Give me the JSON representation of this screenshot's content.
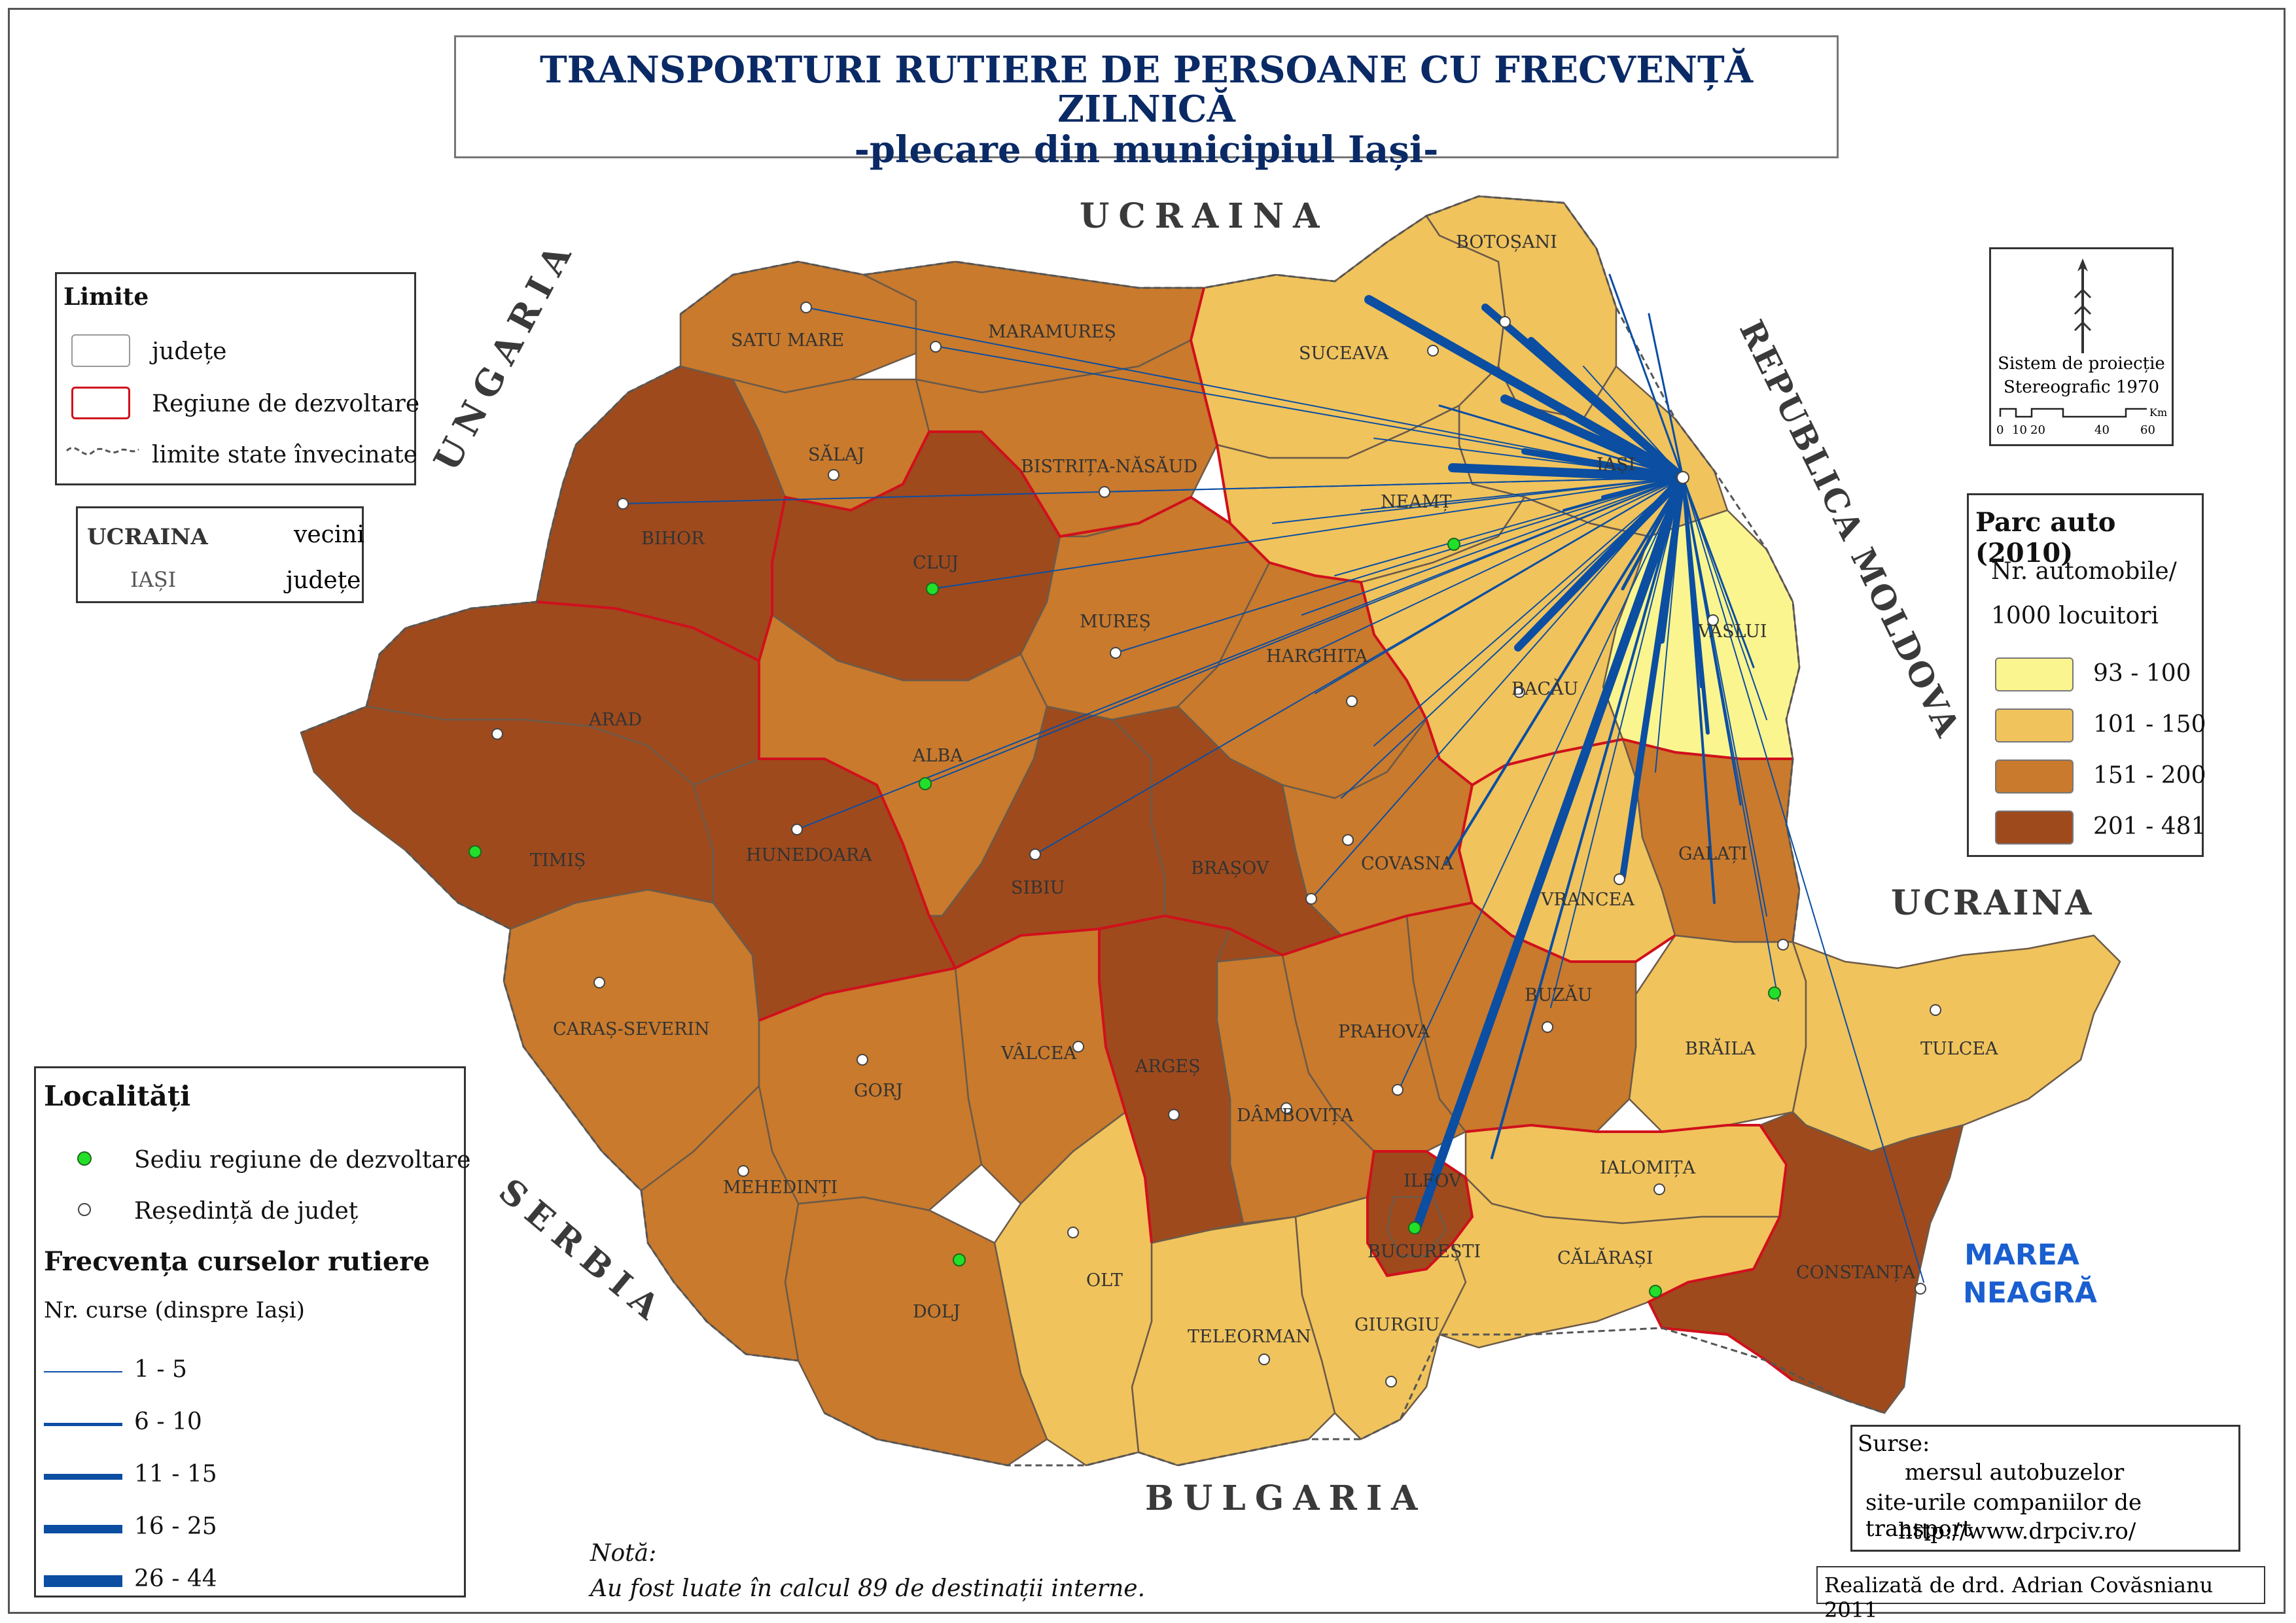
{
  "title": {
    "line1": "TRANSPORTURI RUTIERE DE PERSOANE CU FRECVENȚĂ ZILNICĂ",
    "line2": "-plecare din municipiul Iași-"
  },
  "neighbors": {
    "ucraina_north": "UCRAINA",
    "ucraina_east": "UCRAINA",
    "ungaria": "UNGARIA",
    "serbia": "SERBIA",
    "bulgaria": "BULGARIA",
    "republica_moldova": "REPUBLICA MOLDOVA"
  },
  "sea": {
    "line1": "MAREA",
    "line2": "NEAGRĂ"
  },
  "counties": [
    {
      "name": "BOTOȘANI",
      "class": "101 - 150"
    },
    {
      "name": "SUCEAVA",
      "class": "101 - 150"
    },
    {
      "name": "IAȘI",
      "class": "101 - 150"
    },
    {
      "name": "NEAMȚ",
      "class": "101 - 150"
    },
    {
      "name": "VASLUI",
      "class": "93 - 100"
    },
    {
      "name": "BACĂU",
      "class": "101 - 150"
    },
    {
      "name": "VRANCEA",
      "class": "101 - 150"
    },
    {
      "name": "GALAȚI",
      "class": "151 - 200"
    },
    {
      "name": "BRĂILA",
      "class": "101 - 150"
    },
    {
      "name": "TULCEA",
      "class": "101 - 150"
    },
    {
      "name": "CONSTANȚA",
      "class": "201 - 481"
    },
    {
      "name": "BUZĂU",
      "class": "151 - 200"
    },
    {
      "name": "PRAHOVA",
      "class": "151 - 200"
    },
    {
      "name": "IALOMIȚA",
      "class": "101 - 150"
    },
    {
      "name": "CĂLĂRAȘI",
      "class": "101 - 150"
    },
    {
      "name": "GIURGIU",
      "class": "101 - 150"
    },
    {
      "name": "TELEORMAN",
      "class": "101 - 150"
    },
    {
      "name": "ILFOV",
      "class": "201 - 481"
    },
    {
      "name": "BUCUREȘTI",
      "class": "201 - 481"
    },
    {
      "name": "DÂMBOVIȚA",
      "class": "151 - 200"
    },
    {
      "name": "ARGEȘ",
      "class": "201 - 481"
    },
    {
      "name": "OLT",
      "class": "101 - 150"
    },
    {
      "name": "VÂLCEA",
      "class": "151 - 200"
    },
    {
      "name": "DOLJ",
      "class": "151 - 200"
    },
    {
      "name": "GORJ",
      "class": "151 - 200"
    },
    {
      "name": "MEHEDINȚI",
      "class": "151 - 200"
    },
    {
      "name": "CARAȘ-SEVERIN",
      "class": "151 - 200"
    },
    {
      "name": "TIMIȘ",
      "class": "201 - 481"
    },
    {
      "name": "HUNEDOARA",
      "class": "201 - 481"
    },
    {
      "name": "ARAD",
      "class": "201 - 481"
    },
    {
      "name": "BIHOR",
      "class": "201 - 481"
    },
    {
      "name": "SATU MARE",
      "class": "151 - 200"
    },
    {
      "name": "MARAMUREȘ",
      "class": "151 - 200"
    },
    {
      "name": "SĂLAJ",
      "class": "151 - 200"
    },
    {
      "name": "CLUJ",
      "class": "201 - 481"
    },
    {
      "name": "BISTRIȚA-NĂSĂUD",
      "class": "151 - 200"
    },
    {
      "name": "MUREȘ",
      "class": "151 - 200"
    },
    {
      "name": "HARGHITA",
      "class": "151 - 200"
    },
    {
      "name": "COVASNA",
      "class": "151 - 200"
    },
    {
      "name": "ALBA",
      "class": "151 - 200"
    },
    {
      "name": "SIBIU",
      "class": "201 - 481"
    },
    {
      "name": "BRAȘOV",
      "class": "201 - 481"
    }
  ],
  "legend_limits": {
    "title": "Limite",
    "judete": "județe",
    "regiune": "Regiune de dezvoltare",
    "state": "limite state învecinate"
  },
  "legend_names": {
    "neighbor_sample": "UCRAINA",
    "neighbor_label": "vecini",
    "county_sample": "IAȘI",
    "county_label": "județe"
  },
  "legend_localitati": {
    "title": "Localități",
    "sediu": "Sediu regiune de dezvoltare",
    "resedinta": "Reședință de județ",
    "freq_title": "Frecvența curselor rutiere",
    "freq_sub": "Nr. curse (dinspre Iași)",
    "classes": [
      "1 - 5",
      "6 - 10",
      "11 - 15",
      "16 - 25",
      "26 - 44"
    ]
  },
  "legend_parc": {
    "title": "Parc auto (2010)",
    "sub1": "Nr. automobile/",
    "sub2": "1000 locuitori",
    "classes": [
      {
        "label": "93 - 100",
        "color": "#fbf58f"
      },
      {
        "label": "101 - 150",
        "color": "#f0c35c"
      },
      {
        "label": "151 - 200",
        "color": "#c97a2c"
      },
      {
        "label": "201 - 481",
        "color": "#9e4a1d"
      }
    ]
  },
  "projection": {
    "line1": "Sistem de proiecție",
    "line2": "Stereografic 1970",
    "scale_ticks": [
      "0",
      "10",
      "20",
      "40",
      "60"
    ],
    "scale_unit": "Km"
  },
  "sources": {
    "title": "Surse:",
    "s1": "mersul autobuzelor",
    "s2": "site-urile companiilor de transport",
    "s3": "http://www.drpciv.ro/"
  },
  "note": {
    "title": "Notă:",
    "text": "Au fost luate în calcul 89 de destinații interne."
  },
  "author": "Realizată de drd. Adrian Covăsnianu 2011",
  "colors": {
    "route": "#0b4ea2",
    "region_border": "#d0101c",
    "sediu_dot": "#22e02a"
  }
}
